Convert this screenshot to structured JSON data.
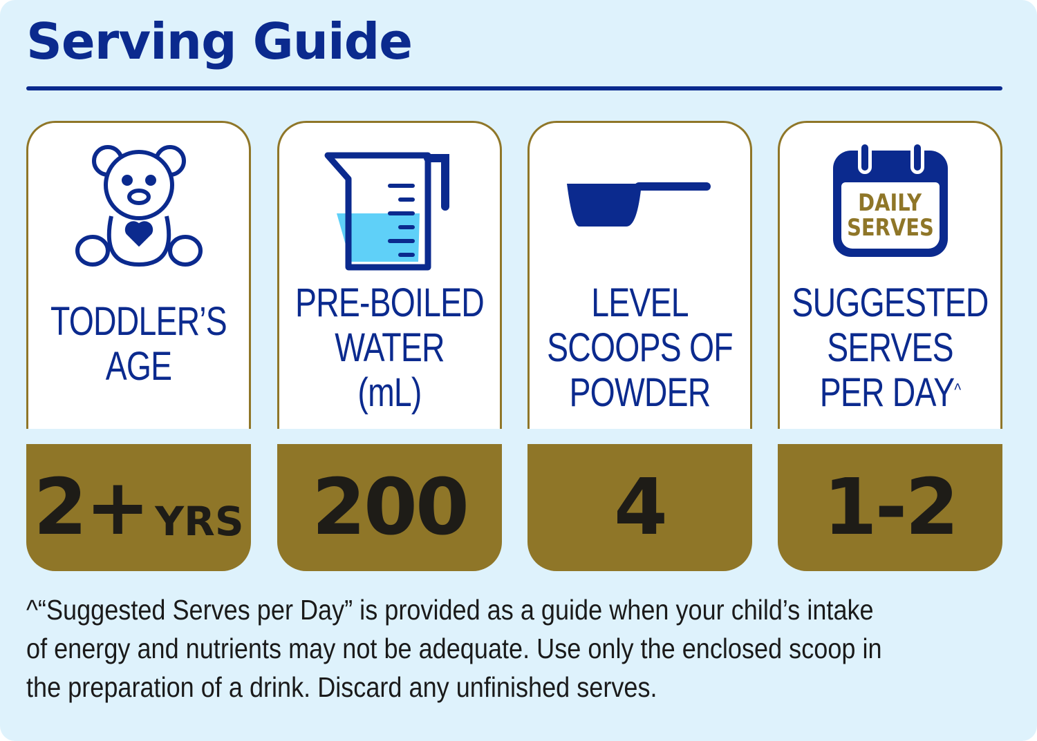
{
  "title": "Serving Guide",
  "cards": [
    {
      "icon": "teddy-bear-icon",
      "label_lines": [
        "TODDLER’S",
        "AGE"
      ],
      "value": "2+",
      "unit": "YRS"
    },
    {
      "icon": "measuring-jug-icon",
      "label_lines": [
        "PRE-BOILED",
        "WATER",
        "(mL)"
      ],
      "value": "200",
      "unit": ""
    },
    {
      "icon": "scoop-icon",
      "label_lines": [
        "LEVEL",
        "SCOOPS OF",
        "POWDER"
      ],
      "value": "4",
      "unit": ""
    },
    {
      "icon": "calendar-icon",
      "icon_text": [
        "DAILY",
        "SERVES"
      ],
      "label_lines": [
        "SUGGESTED",
        "SERVES",
        "PER DAY"
      ],
      "label_sup": "^",
      "value": "1-2",
      "unit": ""
    }
  ],
  "footnote": "^“Suggested Serves per Day” is provided as a guide when your child’s intake of energy and nutrients may not be adequate. Use only the enclosed scoop in the preparation of a drink. Discard any unfinished serves.",
  "colors": {
    "background": "#def2fc",
    "navy": "#0b2a8e",
    "gold": "#8f7628",
    "water": "#5fd0f8"
  }
}
